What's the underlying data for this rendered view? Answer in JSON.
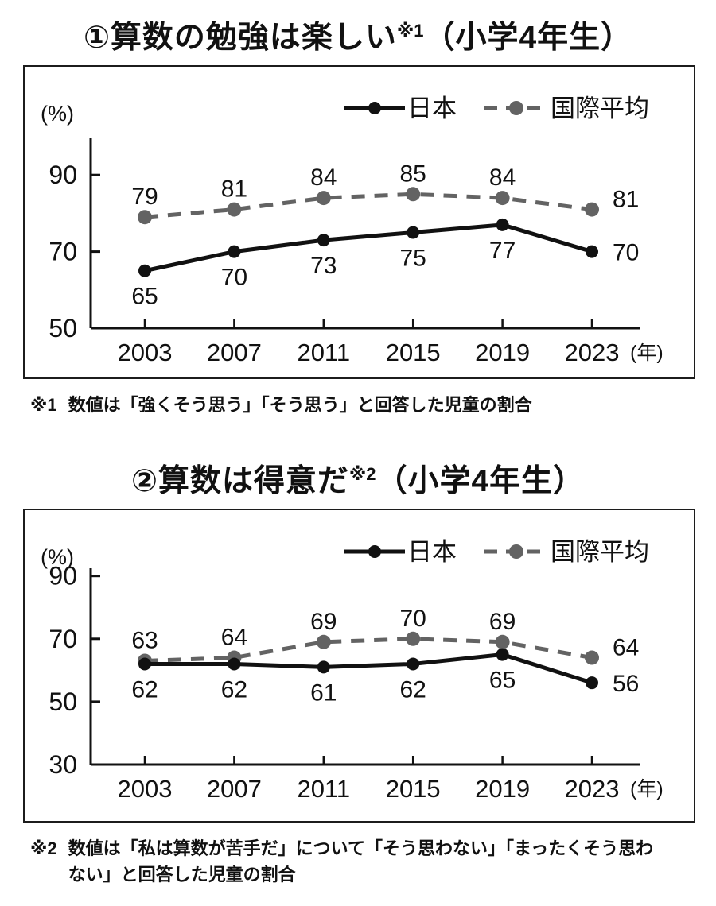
{
  "colors": {
    "japan_line": "#111111",
    "international_line": "#636363",
    "axis": "#111111",
    "panel_border": "#1c1c1c"
  },
  "charts": [
    {
      "title": {
        "prefix": "①算数の勉強は楽しい",
        "note_ref": "※1",
        "suffix": "（小学4年生）"
      },
      "axis_unit_label": "(%)",
      "x_unit_label": "(年)",
      "footnote": {
        "marker": "※1",
        "text": "数値は「強くそう思う」「そう思う」と回答した児童の割合"
      },
      "chart_data": {
        "type": "line",
        "x": [
          "2003",
          "2007",
          "2011",
          "2015",
          "2019",
          "2023"
        ],
        "series": [
          {
            "name": "日本",
            "values": [
              65,
              70,
              73,
              75,
              77,
              70
            ],
            "color": "#111111",
            "line_style": "solid",
            "label_pos": "below"
          },
          {
            "name": "国際平均",
            "values": [
              79,
              81,
              84,
              85,
              84,
              81
            ],
            "color": "#636363",
            "line_style": "dashed",
            "label_pos": "above"
          }
        ],
        "yticks": [
          50,
          70,
          90
        ],
        "ylim": [
          50,
          100
        ],
        "xlabel": "(年)",
        "ylabel": "(%)",
        "legend_position": "top-right",
        "grid": false
      }
    },
    {
      "title": {
        "prefix": "②算数は得意だ",
        "note_ref": "※2",
        "suffix": "（小学4年生）"
      },
      "axis_unit_label": "(%)",
      "x_unit_label": "(年)",
      "footnote": {
        "marker": "※2",
        "text": "数値は「私は算数が苦手だ」について「そう思わない」「まったくそう思わない」と回答した児童の割合"
      },
      "chart_data": {
        "type": "line",
        "x": [
          "2003",
          "2007",
          "2011",
          "2015",
          "2019",
          "2023"
        ],
        "series": [
          {
            "name": "日本",
            "values": [
              62,
              62,
              61,
              62,
              65,
              56
            ],
            "color": "#111111",
            "line_style": "solid",
            "label_pos": "below"
          },
          {
            "name": "国際平均",
            "values": [
              63,
              64,
              69,
              70,
              69,
              64
            ],
            "color": "#636363",
            "line_style": "dashed",
            "label_pos": "above"
          }
        ],
        "yticks": [
          30,
          50,
          70,
          90
        ],
        "ylim": [
          30,
          95
        ],
        "xlabel": "(年)",
        "ylabel": "(%)",
        "legend_position": "top-right",
        "grid": false
      }
    }
  ]
}
